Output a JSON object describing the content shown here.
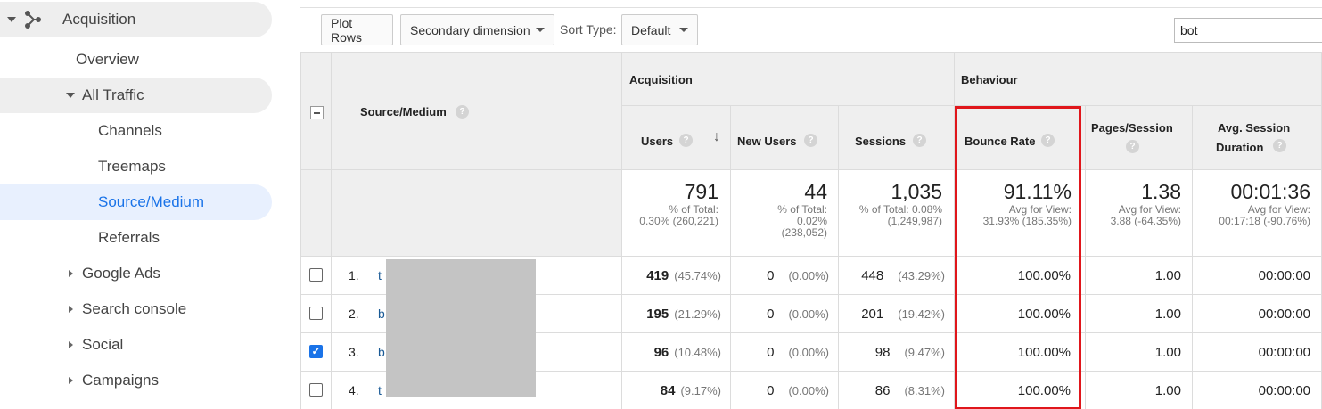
{
  "sidebar": {
    "acquisition": "Acquisition",
    "overview": "Overview",
    "all_traffic": "All Traffic",
    "channels": "Channels",
    "treemaps": "Treemaps",
    "source_medium": "Source/Medium",
    "referrals": "Referrals",
    "google_ads": "Google Ads",
    "search_console": "Search console",
    "social": "Social",
    "campaigns": "Campaigns"
  },
  "toolbar": {
    "plot_rows": "Plot Rows",
    "secondary_dimension": "Secondary dimension",
    "sort_type_label": "Sort Type:",
    "sort_type_value": "Default",
    "search_value": "bot"
  },
  "table": {
    "group_acquisition": "Acquisition",
    "group_behaviour": "Behaviour",
    "col_source_medium": "Source/Medium",
    "col_users": "Users",
    "col_new_users": "New Users",
    "col_sessions": "Sessions",
    "col_bounce_rate": "Bounce Rate",
    "col_pages_session": "Pages/Session",
    "col_avg_session_line1": "Avg. Session",
    "col_avg_session_line2": "Duration",
    "totals": {
      "users": "791",
      "users_sub1": "% of Total:",
      "users_sub2": "0.30% (260,221)",
      "new_users": "44",
      "new_users_sub1": "% of Total:",
      "new_users_sub2": "0.02%",
      "new_users_sub3": "(238,052)",
      "sessions": "1,035",
      "sessions_sub1": "% of Total: 0.08%",
      "sessions_sub2": "(1,249,987)",
      "bounce_rate": "91.11%",
      "bounce_rate_sub1": "Avg for View:",
      "bounce_rate_sub2": "31.93% (185.35%)",
      "pages_session": "1.38",
      "pages_session_sub1": "Avg for View:",
      "pages_session_sub2": "3.88 (-64.35%)",
      "avg_duration": "00:01:36",
      "avg_duration_sub1": "Avg for View:",
      "avg_duration_sub2": "00:17:18 (-90.76%)"
    },
    "rows": [
      {
        "index": "1.",
        "source": "t",
        "users": "419",
        "users_pct": "(45.74%)",
        "new_users": "0",
        "new_users_pct": "(0.00%)",
        "sessions": "448",
        "sessions_pct": "(43.29%)",
        "bounce": "100.00%",
        "pages": "1.00",
        "duration": "00:00:00",
        "checked": false
      },
      {
        "index": "2.",
        "source": "b",
        "users": "195",
        "users_pct": "(21.29%)",
        "new_users": "0",
        "new_users_pct": "(0.00%)",
        "sessions": "201",
        "sessions_pct": "(19.42%)",
        "bounce": "100.00%",
        "pages": "1.00",
        "duration": "00:00:00",
        "checked": false
      },
      {
        "index": "3.",
        "source": "b",
        "users": "96",
        "users_pct": "(10.48%)",
        "new_users": "0",
        "new_users_pct": "(0.00%)",
        "sessions": "98",
        "sessions_pct": "(9.47%)",
        "bounce": "100.00%",
        "pages": "1.00",
        "duration": "00:00:00",
        "checked": true
      },
      {
        "index": "4.",
        "source": "t",
        "users": "84",
        "users_pct": "(9.17%)",
        "new_users": "0",
        "new_users_pct": "(0.00%)",
        "sessions": "86",
        "sessions_pct": "(8.31%)",
        "bounce": "100.00%",
        "pages": "1.00",
        "duration": "00:00:00",
        "checked": false
      }
    ]
  },
  "colors": {
    "accent": "#1a73e8",
    "selected_bg": "#e8f0fe",
    "highlight": "#e0161b"
  }
}
